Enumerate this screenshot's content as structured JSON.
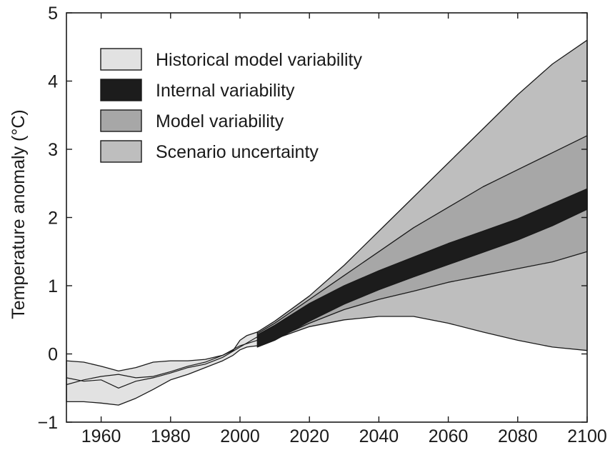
{
  "chart_data": {
    "type": "area",
    "ylabel": "Temperature anomaly (°C)",
    "xlabel": "",
    "xlim": [
      1950,
      2100
    ],
    "ylim": [
      -1,
      5
    ],
    "xticks": [
      1960,
      1980,
      2000,
      2020,
      2040,
      2060,
      2080,
      2100
    ],
    "yticks": [
      -1,
      0,
      1,
      2,
      3,
      4,
      5
    ],
    "legend_position": "top-left",
    "colors": {
      "historical": "#e2e2e2",
      "internal": "#1c1c1c",
      "model": "#a7a7a7",
      "scenario": "#bebebe",
      "outline": "#1a1a1a"
    },
    "legend": [
      {
        "key": "historical",
        "label": "Historical model variability"
      },
      {
        "key": "internal",
        "label": "Internal variability"
      },
      {
        "key": "model",
        "label": "Model variability"
      },
      {
        "key": "scenario",
        "label": "Scenario uncertainty"
      }
    ],
    "series": [
      {
        "key": "scenario",
        "x": [
          2005,
          2010,
          2020,
          2030,
          2040,
          2050,
          2060,
          2070,
          2080,
          2090,
          2100
        ],
        "upper": [
          0.32,
          0.48,
          0.85,
          1.3,
          1.8,
          2.3,
          2.8,
          3.3,
          3.8,
          4.25,
          4.6
        ],
        "lower": [
          0.15,
          0.22,
          0.4,
          0.5,
          0.55,
          0.55,
          0.45,
          0.32,
          0.2,
          0.1,
          0.05
        ]
      },
      {
        "key": "model",
        "x": [
          2005,
          2010,
          2020,
          2030,
          2040,
          2050,
          2060,
          2070,
          2080,
          2090,
          2100
        ],
        "upper": [
          0.3,
          0.45,
          0.8,
          1.15,
          1.5,
          1.85,
          2.15,
          2.45,
          2.7,
          2.95,
          3.2
        ],
        "lower": [
          0.15,
          0.22,
          0.45,
          0.65,
          0.8,
          0.92,
          1.05,
          1.15,
          1.25,
          1.35,
          1.5
        ]
      },
      {
        "key": "internal",
        "x": [
          2005,
          2010,
          2020,
          2030,
          2040,
          2050,
          2060,
          2070,
          2080,
          2090,
          2100
        ],
        "upper": [
          0.28,
          0.42,
          0.74,
          1.0,
          1.22,
          1.42,
          1.62,
          1.8,
          1.98,
          2.2,
          2.42
        ],
        "lower": [
          0.1,
          0.2,
          0.48,
          0.73,
          0.94,
          1.13,
          1.31,
          1.49,
          1.67,
          1.88,
          2.12
        ]
      },
      {
        "key": "historical",
        "x": [
          1950,
          1955,
          1960,
          1965,
          1970,
          1975,
          1980,
          1985,
          1990,
          1995,
          1998,
          2000,
          2002,
          2005
        ],
        "upper": [
          -0.1,
          -0.12,
          -0.18,
          -0.25,
          -0.2,
          -0.12,
          -0.1,
          -0.1,
          -0.08,
          -0.02,
          0.05,
          0.2,
          0.27,
          0.32
        ],
        "lower": [
          -0.7,
          -0.7,
          -0.72,
          -0.75,
          -0.65,
          -0.52,
          -0.38,
          -0.3,
          -0.2,
          -0.1,
          -0.02,
          0.06,
          0.1,
          0.12
        ]
      }
    ],
    "inner_lines": [
      {
        "x": [
          1950,
          1955,
          1960,
          1965,
          1970,
          1975,
          1980,
          1985,
          1990,
          1995,
          2000,
          2005
        ],
        "y": [
          -0.35,
          -0.4,
          -0.38,
          -0.5,
          -0.4,
          -0.35,
          -0.28,
          -0.2,
          -0.15,
          -0.05,
          0.1,
          0.25
        ]
      },
      {
        "x": [
          1950,
          1955,
          1960,
          1965,
          1970,
          1975,
          1980,
          1985,
          1990,
          1995,
          2000,
          2005
        ],
        "y": [
          -0.45,
          -0.38,
          -0.33,
          -0.3,
          -0.35,
          -0.33,
          -0.26,
          -0.18,
          -0.12,
          -0.02,
          0.12,
          0.2
        ]
      }
    ]
  }
}
